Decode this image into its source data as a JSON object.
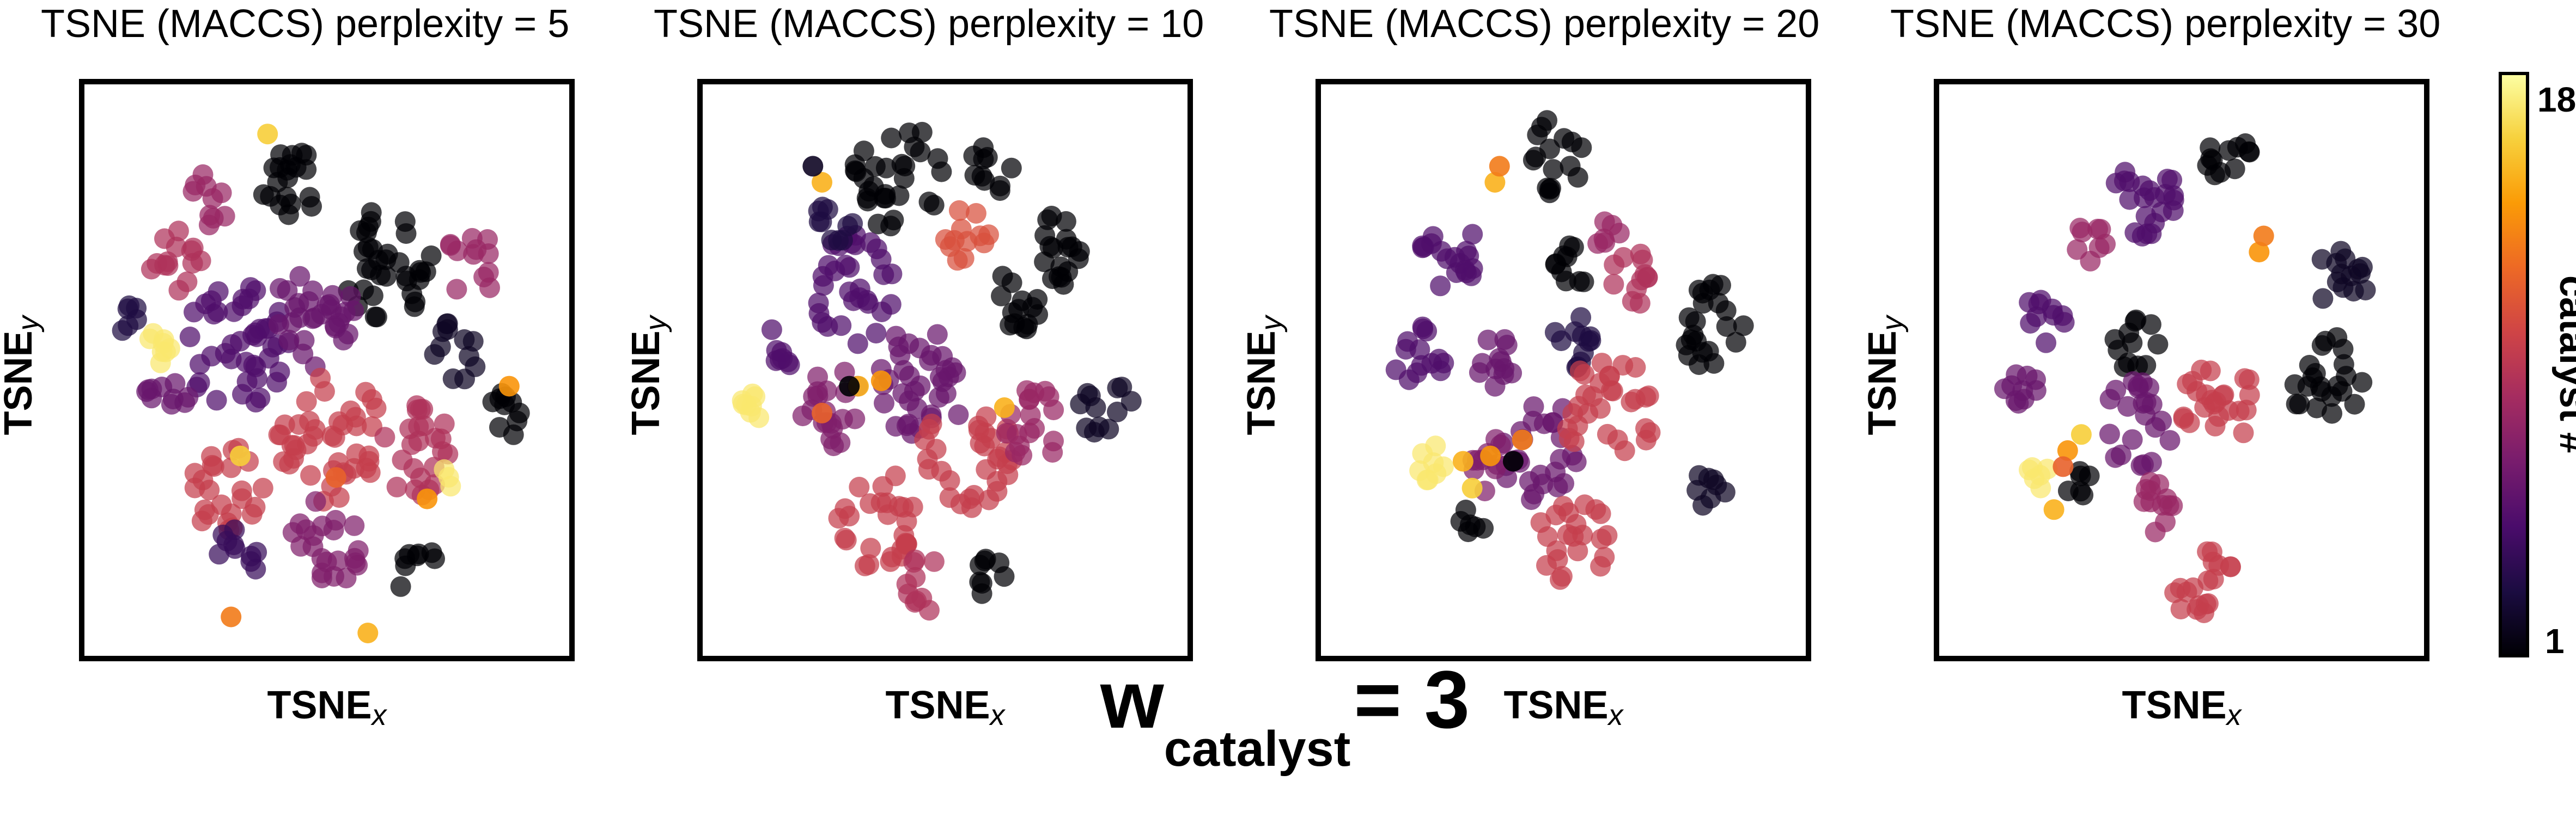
{
  "chart_data": [
    {
      "type": "scatter",
      "title": "TSNE (MACCS) perplexity = 5",
      "xlabel_main": "TSNE",
      "xlabel_sub": "x",
      "ylabel_main": "TSNE",
      "ylabel_sub": "y",
      "clusters": [
        {
          "x": 0.42,
          "y": 0.16,
          "r": 0.07,
          "n": 20,
          "c": 1
        },
        {
          "x": 0.63,
          "y": 0.3,
          "r": 0.1,
          "n": 34,
          "c": 1
        },
        {
          "x": 0.78,
          "y": 0.46,
          "r": 0.06,
          "n": 12,
          "c": 2
        },
        {
          "x": 0.88,
          "y": 0.58,
          "r": 0.05,
          "n": 10,
          "c": 1
        },
        {
          "x": 0.7,
          "y": 0.88,
          "r": 0.05,
          "n": 8,
          "c": 1
        },
        {
          "x": 0.3,
          "y": 0.45,
          "r": 0.12,
          "n": 44,
          "c": 5
        },
        {
          "x": 0.47,
          "y": 0.4,
          "r": 0.09,
          "n": 30,
          "c": 6
        },
        {
          "x": 0.5,
          "y": 0.62,
          "r": 0.12,
          "n": 42,
          "c": 10
        },
        {
          "x": 0.28,
          "y": 0.72,
          "r": 0.08,
          "n": 24,
          "c": 10
        },
        {
          "x": 0.5,
          "y": 0.82,
          "r": 0.08,
          "n": 22,
          "c": 7
        },
        {
          "x": 0.7,
          "y": 0.65,
          "r": 0.08,
          "n": 24,
          "c": 9
        },
        {
          "x": 0.17,
          "y": 0.3,
          "r": 0.06,
          "n": 14,
          "c": 9
        },
        {
          "x": 0.82,
          "y": 0.3,
          "r": 0.06,
          "n": 12,
          "c": 8
        },
        {
          "x": 0.15,
          "y": 0.55,
          "r": 0.05,
          "n": 10,
          "c": 6
        },
        {
          "x": 0.08,
          "y": 0.4,
          "r": 0.04,
          "n": 6,
          "c": 3
        },
        {
          "x": 0.25,
          "y": 0.18,
          "r": 0.05,
          "n": 10,
          "c": 8
        },
        {
          "x": 0.13,
          "y": 0.46,
          "r": 0.03,
          "n": 8,
          "c": 17
        },
        {
          "x": 0.76,
          "y": 0.7,
          "r": 0.02,
          "n": 3,
          "c": 17
        },
        {
          "x": 0.3,
          "y": 0.85,
          "r": 0.05,
          "n": 10,
          "c": 4
        }
      ],
      "points": [
        {
          "x": 0.37,
          "y": 0.06,
          "c": 16
        },
        {
          "x": 0.9,
          "y": 0.53,
          "c": 14
        },
        {
          "x": 0.29,
          "y": 0.96,
          "c": 13
        },
        {
          "x": 0.59,
          "y": 0.99,
          "c": 15
        },
        {
          "x": 0.31,
          "y": 0.66,
          "c": 16
        },
        {
          "x": 0.52,
          "y": 0.7,
          "c": 12
        },
        {
          "x": 0.72,
          "y": 0.74,
          "c": 14
        }
      ]
    },
    {
      "type": "scatter",
      "title": "TSNE (MACCS) perplexity = 10",
      "xlabel_main": "TSNE",
      "xlabel_sub": "x",
      "ylabel_main": "TSNE",
      "ylabel_sub": "y",
      "clusters": [
        {
          "x": 0.4,
          "y": 0.14,
          "r": 0.1,
          "n": 30,
          "c": 1
        },
        {
          "x": 0.6,
          "y": 0.12,
          "r": 0.05,
          "n": 10,
          "c": 1
        },
        {
          "x": 0.75,
          "y": 0.28,
          "r": 0.07,
          "n": 18,
          "c": 1
        },
        {
          "x": 0.65,
          "y": 0.38,
          "r": 0.06,
          "n": 14,
          "c": 1
        },
        {
          "x": 0.55,
          "y": 0.25,
          "r": 0.05,
          "n": 12,
          "c": 11
        },
        {
          "x": 0.85,
          "y": 0.57,
          "r": 0.06,
          "n": 12,
          "c": 2
        },
        {
          "x": 0.6,
          "y": 0.88,
          "r": 0.04,
          "n": 8,
          "c": 1
        },
        {
          "x": 0.3,
          "y": 0.35,
          "r": 0.1,
          "n": 32,
          "c": 5
        },
        {
          "x": 0.45,
          "y": 0.52,
          "r": 0.1,
          "n": 36,
          "c": 6
        },
        {
          "x": 0.55,
          "y": 0.66,
          "r": 0.1,
          "n": 32,
          "c": 10
        },
        {
          "x": 0.35,
          "y": 0.78,
          "r": 0.09,
          "n": 28,
          "c": 10
        },
        {
          "x": 0.25,
          "y": 0.57,
          "r": 0.07,
          "n": 20,
          "c": 7
        },
        {
          "x": 0.7,
          "y": 0.6,
          "r": 0.07,
          "n": 18,
          "c": 8
        },
        {
          "x": 0.45,
          "y": 0.9,
          "r": 0.05,
          "n": 10,
          "c": 9
        },
        {
          "x": 0.15,
          "y": 0.45,
          "r": 0.04,
          "n": 8,
          "c": 5
        },
        {
          "x": 0.07,
          "y": 0.57,
          "r": 0.03,
          "n": 8,
          "c": 17
        },
        {
          "x": 0.25,
          "y": 0.24,
          "r": 0.05,
          "n": 10,
          "c": 3
        }
      ],
      "points": [
        {
          "x": 0.23,
          "y": 0.15,
          "c": 15
        },
        {
          "x": 0.21,
          "y": 0.12,
          "c": 2
        },
        {
          "x": 0.31,
          "y": 0.53,
          "c": 15
        },
        {
          "x": 0.29,
          "y": 0.53,
          "c": 1
        },
        {
          "x": 0.23,
          "y": 0.58,
          "c": 12
        },
        {
          "x": 0.63,
          "y": 0.57,
          "c": 15
        },
        {
          "x": 0.36,
          "y": 0.52,
          "c": 14
        }
      ]
    },
    {
      "type": "scatter",
      "title": "TSNE (MACCS) perplexity = 20",
      "xlabel_main": "TSNE",
      "xlabel_sub": "x",
      "ylabel_main": "TSNE",
      "ylabel_sub": "y",
      "clusters": [
        {
          "x": 0.48,
          "y": 0.1,
          "r": 0.07,
          "n": 16,
          "c": 1
        },
        {
          "x": 0.82,
          "y": 0.42,
          "r": 0.08,
          "n": 22,
          "c": 1
        },
        {
          "x": 0.52,
          "y": 0.3,
          "r": 0.05,
          "n": 10,
          "c": 1
        },
        {
          "x": 0.52,
          "y": 0.45,
          "r": 0.05,
          "n": 12,
          "c": 3
        },
        {
          "x": 0.25,
          "y": 0.28,
          "r": 0.07,
          "n": 18,
          "c": 5
        },
        {
          "x": 0.18,
          "y": 0.48,
          "r": 0.06,
          "n": 14,
          "c": 5
        },
        {
          "x": 0.35,
          "y": 0.48,
          "r": 0.05,
          "n": 12,
          "c": 6
        },
        {
          "x": 0.45,
          "y": 0.65,
          "r": 0.09,
          "n": 26,
          "c": 6
        },
        {
          "x": 0.6,
          "y": 0.58,
          "r": 0.1,
          "n": 30,
          "c": 10
        },
        {
          "x": 0.52,
          "y": 0.82,
          "r": 0.08,
          "n": 22,
          "c": 10
        },
        {
          "x": 0.35,
          "y": 0.68,
          "r": 0.05,
          "n": 10,
          "c": 7
        },
        {
          "x": 0.65,
          "y": 0.33,
          "r": 0.05,
          "n": 12,
          "c": 9
        },
        {
          "x": 0.82,
          "y": 0.73,
          "r": 0.04,
          "n": 8,
          "c": 2
        },
        {
          "x": 0.2,
          "y": 0.67,
          "r": 0.04,
          "n": 8,
          "c": 17
        },
        {
          "x": 0.3,
          "y": 0.78,
          "r": 0.03,
          "n": 6,
          "c": 1
        },
        {
          "x": 0.6,
          "y": 0.25,
          "r": 0.03,
          "n": 6,
          "c": 8
        }
      ],
      "points": [
        {
          "x": 0.35,
          "y": 0.15,
          "c": 15
        },
        {
          "x": 0.36,
          "y": 0.12,
          "c": 13
        },
        {
          "x": 0.34,
          "y": 0.66,
          "c": 14
        },
        {
          "x": 0.3,
          "y": 0.72,
          "c": 16
        },
        {
          "x": 0.41,
          "y": 0.63,
          "c": 13
        },
        {
          "x": 0.39,
          "y": 0.67,
          "c": 1
        },
        {
          "x": 0.28,
          "y": 0.67,
          "c": 15
        }
      ]
    },
    {
      "type": "scatter",
      "title": "TSNE (MACCS) perplexity = 30",
      "xlabel_main": "TSNE",
      "xlabel_sub": "x",
      "ylabel_main": "TSNE",
      "ylabel_sub": "y",
      "clusters": [
        {
          "x": 0.42,
          "y": 0.18,
          "r": 0.07,
          "n": 22,
          "c": 5
        },
        {
          "x": 0.6,
          "y": 0.1,
          "r": 0.05,
          "n": 12,
          "c": 1
        },
        {
          "x": 0.85,
          "y": 0.33,
          "r": 0.06,
          "n": 14,
          "c": 2
        },
        {
          "x": 0.82,
          "y": 0.52,
          "r": 0.08,
          "n": 22,
          "c": 1
        },
        {
          "x": 0.4,
          "y": 0.45,
          "r": 0.05,
          "n": 12,
          "c": 1
        },
        {
          "x": 0.2,
          "y": 0.4,
          "r": 0.05,
          "n": 10,
          "c": 5
        },
        {
          "x": 0.15,
          "y": 0.55,
          "r": 0.05,
          "n": 10,
          "c": 6
        },
        {
          "x": 0.4,
          "y": 0.6,
          "r": 0.08,
          "n": 22,
          "c": 6
        },
        {
          "x": 0.58,
          "y": 0.55,
          "r": 0.09,
          "n": 24,
          "c": 10
        },
        {
          "x": 0.55,
          "y": 0.9,
          "r": 0.07,
          "n": 18,
          "c": 10
        },
        {
          "x": 0.45,
          "y": 0.75,
          "r": 0.05,
          "n": 12,
          "c": 8
        },
        {
          "x": 0.3,
          "y": 0.26,
          "r": 0.04,
          "n": 8,
          "c": 8
        },
        {
          "x": 0.28,
          "y": 0.72,
          "r": 0.03,
          "n": 6,
          "c": 1
        },
        {
          "x": 0.18,
          "y": 0.7,
          "r": 0.03,
          "n": 6,
          "c": 17
        }
      ],
      "points": [
        {
          "x": 0.67,
          "y": 0.28,
          "c": 14
        },
        {
          "x": 0.68,
          "y": 0.25,
          "c": 13
        },
        {
          "x": 0.25,
          "y": 0.65,
          "c": 14
        },
        {
          "x": 0.28,
          "y": 0.62,
          "c": 16
        },
        {
          "x": 0.24,
          "y": 0.68,
          "c": 12
        },
        {
          "x": 0.22,
          "y": 0.76,
          "c": 15
        }
      ]
    }
  ],
  "colorbar": {
    "label": "catalyst #",
    "min": 1,
    "max": 18,
    "tick_min": "1",
    "tick_max": "18",
    "colormap": "inferno",
    "stops": [
      "#000004",
      "#1b0c41",
      "#4a0c6b",
      "#781c6d",
      "#a52c60",
      "#cf4446",
      "#ed6925",
      "#fb9b06",
      "#f7d13d",
      "#fcffa4"
    ]
  },
  "caption": {
    "main": "w",
    "sub": "catalyst",
    "rest": "= 3"
  }
}
